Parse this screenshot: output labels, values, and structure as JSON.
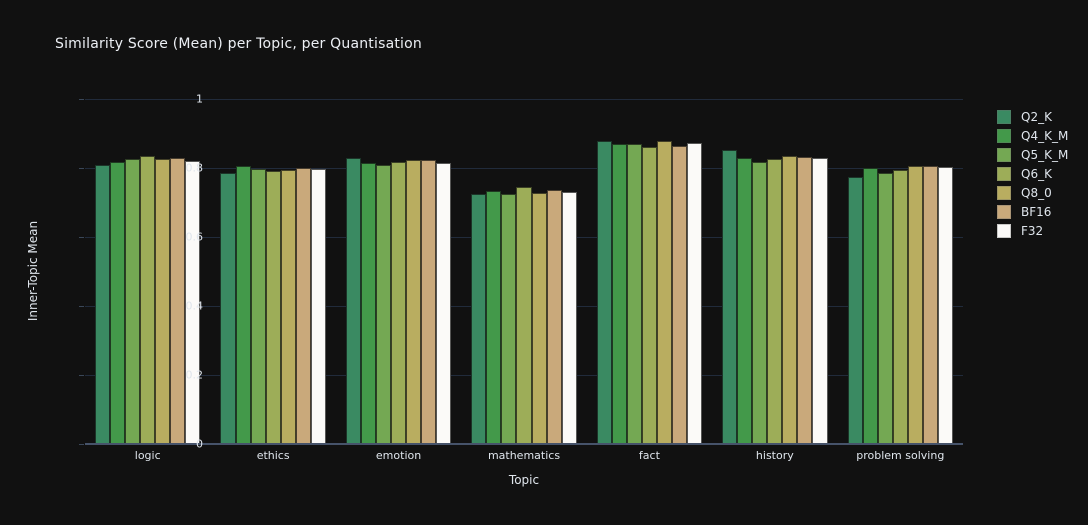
{
  "title": "Similarity Score (Mean) per Topic, per Quantisation",
  "colors": {
    "background": "#111111",
    "gridline": "#212b3b",
    "axis_line": "#46536a",
    "text": "#dfe5ec",
    "title_text": "#eceff4"
  },
  "chart_data": {
    "type": "bar",
    "title": "Similarity Score (Mean) per Topic, per Quantisation",
    "xlabel": "Topic",
    "ylabel": "Inner-Topic Mean",
    "ylim": [
      0,
      1
    ],
    "yticks": [
      0,
      0.2,
      0.4,
      0.6,
      0.8,
      1
    ],
    "ytick_labels": [
      "0",
      "0.2",
      "0.4",
      "0.6",
      "0.8",
      "1"
    ],
    "grid": true,
    "legend_position": "right",
    "categories": [
      "logic",
      "ethics",
      "emotion",
      "mathematics",
      "fact",
      "history",
      "problem solving"
    ],
    "series": [
      {
        "name": "Q2_K",
        "color": "#3a8a62",
        "values": [
          0.808,
          0.785,
          0.828,
          0.725,
          0.879,
          0.851,
          0.773
        ]
      },
      {
        "name": "Q4_K_M",
        "color": "#43994a",
        "values": [
          0.817,
          0.807,
          0.814,
          0.732,
          0.871,
          0.828,
          0.801
        ]
      },
      {
        "name": "Q5_K_M",
        "color": "#74a853",
        "values": [
          0.825,
          0.796,
          0.808,
          0.724,
          0.869,
          0.817,
          0.785
        ]
      },
      {
        "name": "Q6_K",
        "color": "#9dad58",
        "values": [
          0.835,
          0.791,
          0.818,
          0.746,
          0.862,
          0.826,
          0.794
        ]
      },
      {
        "name": "Q8_0",
        "color": "#b9ad60",
        "values": [
          0.827,
          0.794,
          0.823,
          0.728,
          0.877,
          0.834,
          0.807
        ]
      },
      {
        "name": "BF16",
        "color": "#c9a97b",
        "values": [
          0.83,
          0.8,
          0.823,
          0.736,
          0.864,
          0.831,
          0.807
        ]
      },
      {
        "name": "F32",
        "color": "#fbfaf8",
        "values": [
          0.82,
          0.798,
          0.814,
          0.73,
          0.872,
          0.83,
          0.804
        ]
      }
    ]
  }
}
